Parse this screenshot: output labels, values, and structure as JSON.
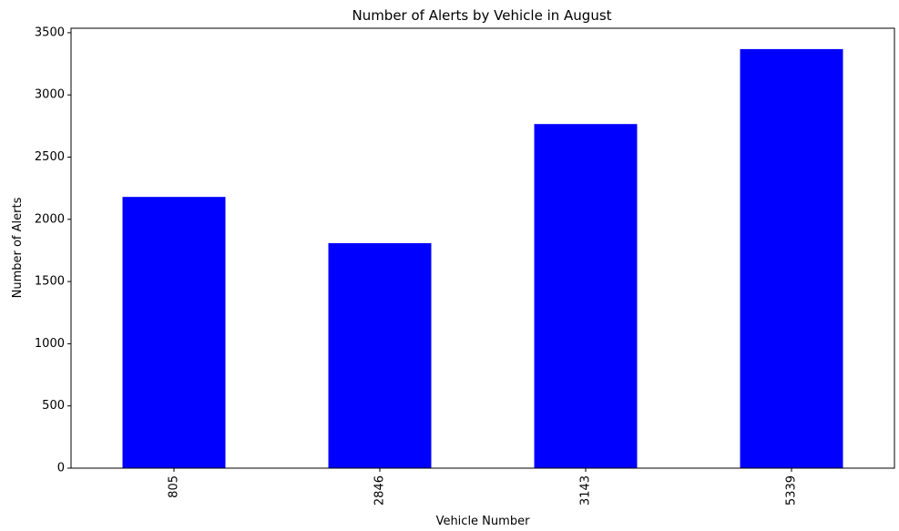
{
  "chart_data": {
    "type": "bar",
    "title": "Number of Alerts by Vehicle in August",
    "xlabel": "Vehicle Number",
    "ylabel": "Number of Alerts",
    "categories": [
      "805",
      "2846",
      "3143",
      "5339"
    ],
    "values": [
      2180,
      1808,
      2766,
      3368
    ],
    "ylim": [
      0,
      3536
    ],
    "yticks": [
      0,
      500,
      1000,
      1500,
      2000,
      2500,
      3000,
      3500
    ],
    "ytick_labels": [
      "0",
      "500",
      "1000",
      "1500",
      "2000",
      "2500",
      "3000",
      "3500"
    ],
    "bar_color": "#0000ff",
    "grid": false,
    "legend": "none",
    "xtick_rotation": "vertical"
  }
}
